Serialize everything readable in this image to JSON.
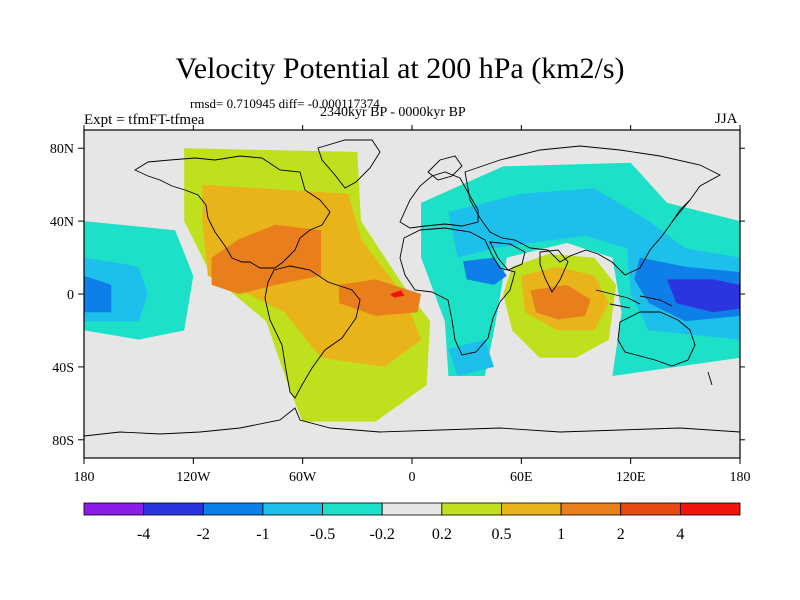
{
  "chart_data": {
    "type": "heatmap",
    "title": "Velocity Potential at 200 hPa (km2/s)",
    "stats_line": "rmsd= 0.710945 diff= -0.000117374",
    "experiment": "Expt = tfmFT-tfmea",
    "period": "2340kyr BP - 0000kyr BP",
    "season": "JJA",
    "projection": "cylindrical-equidistant",
    "xlim": [
      -180,
      180
    ],
    "ylim": [
      -90,
      90
    ],
    "lon_ticks": [
      {
        "value": -180,
        "label": "180"
      },
      {
        "value": -120,
        "label": "120W"
      },
      {
        "value": -60,
        "label": "60W"
      },
      {
        "value": 0,
        "label": "0"
      },
      {
        "value": 60,
        "label": "60E"
      },
      {
        "value": 120,
        "label": "120E"
      },
      {
        "value": 180,
        "label": "180"
      }
    ],
    "lat_ticks": [
      {
        "value": 80,
        "label": "80N"
      },
      {
        "value": 40,
        "label": "40N"
      },
      {
        "value": 0,
        "label": "0"
      },
      {
        "value": -40,
        "label": "40S"
      },
      {
        "value": -80,
        "label": "80S"
      }
    ],
    "colorbar": {
      "levels": [
        "-4",
        "-2",
        "-1",
        "-0.5",
        "-0.2",
        "0.2",
        "0.5",
        "1",
        "2",
        "4"
      ],
      "colors": [
        "#8a1ee8",
        "#2a35e0",
        "#0e7fe8",
        "#1cc0ea",
        "#1de0c8",
        "#e6e6e6",
        "#bfe01c",
        "#e8b41a",
        "#e87e1c",
        "#e84a14",
        "#f0140e"
      ]
    },
    "regions": [
      {
        "name": "positive-atlantic",
        "level_index": 6,
        "points": [
          [
            -125,
            80
          ],
          [
            -30,
            78
          ],
          [
            -28,
            40
          ],
          [
            -5,
            5
          ],
          [
            10,
            -15
          ],
          [
            8,
            -50
          ],
          [
            -20,
            -70
          ],
          [
            -60,
            -70
          ],
          [
            -68,
            -50
          ],
          [
            -80,
            -15
          ],
          [
            -110,
            10
          ],
          [
            -125,
            40
          ]
        ]
      },
      {
        "name": "positive-atlantic-inner",
        "level_index": 7,
        "points": [
          [
            -115,
            60
          ],
          [
            -35,
            55
          ],
          [
            -28,
            30
          ],
          [
            -5,
            0
          ],
          [
            5,
            -25
          ],
          [
            -15,
            -40
          ],
          [
            -50,
            -35
          ],
          [
            -70,
            -10
          ],
          [
            -90,
            0
          ],
          [
            -112,
            10
          ],
          [
            -115,
            40
          ]
        ]
      },
      {
        "name": "positive-caribbean-core",
        "level_index": 8,
        "points": [
          [
            -110,
            20
          ],
          [
            -95,
            30
          ],
          [
            -75,
            38
          ],
          [
            -50,
            35
          ],
          [
            -50,
            10
          ],
          [
            -75,
            5
          ],
          [
            -95,
            0
          ],
          [
            -110,
            5
          ]
        ]
      },
      {
        "name": "positive-eqatl-core",
        "level_index": 8,
        "points": [
          [
            -40,
            5
          ],
          [
            -20,
            8
          ],
          [
            5,
            0
          ],
          [
            3,
            -10
          ],
          [
            -20,
            -12
          ],
          [
            -40,
            -5
          ]
        ]
      },
      {
        "name": "positive-eqatl-max",
        "level_index": 10,
        "points": [
          [
            -12,
            0
          ],
          [
            -6,
            2
          ],
          [
            -4,
            -1
          ],
          [
            -10,
            -2
          ]
        ]
      },
      {
        "name": "positive-indian-ocean",
        "level_index": 6,
        "points": [
          [
            55,
            15
          ],
          [
            75,
            22
          ],
          [
            100,
            20
          ],
          [
            112,
            5
          ],
          [
            108,
            -25
          ],
          [
            90,
            -35
          ],
          [
            70,
            -35
          ],
          [
            55,
            -20
          ],
          [
            50,
            0
          ]
        ]
      },
      {
        "name": "positive-indian-inner",
        "level_index": 7,
        "points": [
          [
            60,
            10
          ],
          [
            80,
            15
          ],
          [
            100,
            10
          ],
          [
            108,
            -5
          ],
          [
            100,
            -20
          ],
          [
            80,
            -20
          ],
          [
            62,
            -10
          ]
        ]
      },
      {
        "name": "positive-indian-core",
        "level_index": 8,
        "points": [
          [
            65,
            2
          ],
          [
            85,
            5
          ],
          [
            98,
            -3
          ],
          [
            95,
            -12
          ],
          [
            80,
            -14
          ],
          [
            68,
            -10
          ]
        ]
      },
      {
        "name": "negative-pacific-east",
        "level_index": 4,
        "points": [
          [
            -180,
            40
          ],
          [
            -130,
            35
          ],
          [
            -120,
            10
          ],
          [
            -125,
            -20
          ],
          [
            -150,
            -25
          ],
          [
            -180,
            -20
          ]
        ]
      },
      {
        "name": "negative-pacific-east-inner",
        "level_index": 3,
        "points": [
          [
            -180,
            20
          ],
          [
            -150,
            15
          ],
          [
            -145,
            0
          ],
          [
            -150,
            -15
          ],
          [
            -180,
            -15
          ]
        ]
      },
      {
        "name": "negative-pacific-east-core",
        "level_index": 2,
        "points": [
          [
            -180,
            10
          ],
          [
            -165,
            5
          ],
          [
            -165,
            -10
          ],
          [
            -180,
            -10
          ]
        ]
      },
      {
        "name": "negative-eurasia-africa",
        "level_index": 4,
        "points": [
          [
            5,
            50
          ],
          [
            50,
            70
          ],
          [
            120,
            72
          ],
          [
            140,
            50
          ],
          [
            180,
            40
          ],
          [
            180,
            -35
          ],
          [
            110,
            -45
          ],
          [
            115,
            -10
          ],
          [
            110,
            20
          ],
          [
            85,
            28
          ],
          [
            52,
            20
          ],
          [
            45,
            -20
          ],
          [
            40,
            -45
          ],
          [
            20,
            -45
          ],
          [
            18,
            -15
          ],
          [
            5,
            20
          ]
        ]
      },
      {
        "name": "negative-asia-inner",
        "level_index": 3,
        "points": [
          [
            20,
            45
          ],
          [
            60,
            55
          ],
          [
            100,
            58
          ],
          [
            130,
            40
          ],
          [
            150,
            25
          ],
          [
            180,
            20
          ],
          [
            180,
            -25
          ],
          [
            130,
            -20
          ],
          [
            120,
            0
          ],
          [
            118,
            25
          ],
          [
            95,
            32
          ],
          [
            65,
            28
          ],
          [
            45,
            25
          ],
          [
            25,
            20
          ]
        ]
      },
      {
        "name": "negative-westpac-core",
        "level_index": 2,
        "points": [
          [
            125,
            20
          ],
          [
            150,
            15
          ],
          [
            180,
            12
          ],
          [
            180,
            -12
          ],
          [
            150,
            -15
          ],
          [
            130,
            -5
          ],
          [
            122,
            8
          ]
        ]
      },
      {
        "name": "negative-westpac-max",
        "level_index": 1,
        "points": [
          [
            140,
            8
          ],
          [
            165,
            8
          ],
          [
            180,
            5
          ],
          [
            180,
            -8
          ],
          [
            165,
            -10
          ],
          [
            145,
            -5
          ]
        ]
      },
      {
        "name": "negative-mideast-core",
        "level_index": 2,
        "points": [
          [
            28,
            18
          ],
          [
            45,
            20
          ],
          [
            52,
            10
          ],
          [
            45,
            5
          ],
          [
            30,
            8
          ]
        ]
      },
      {
        "name": "negative-southern-indian",
        "level_index": 3,
        "points": [
          [
            20,
            -30
          ],
          [
            40,
            -25
          ],
          [
            45,
            -40
          ],
          [
            25,
            -45
          ]
        ]
      }
    ]
  }
}
